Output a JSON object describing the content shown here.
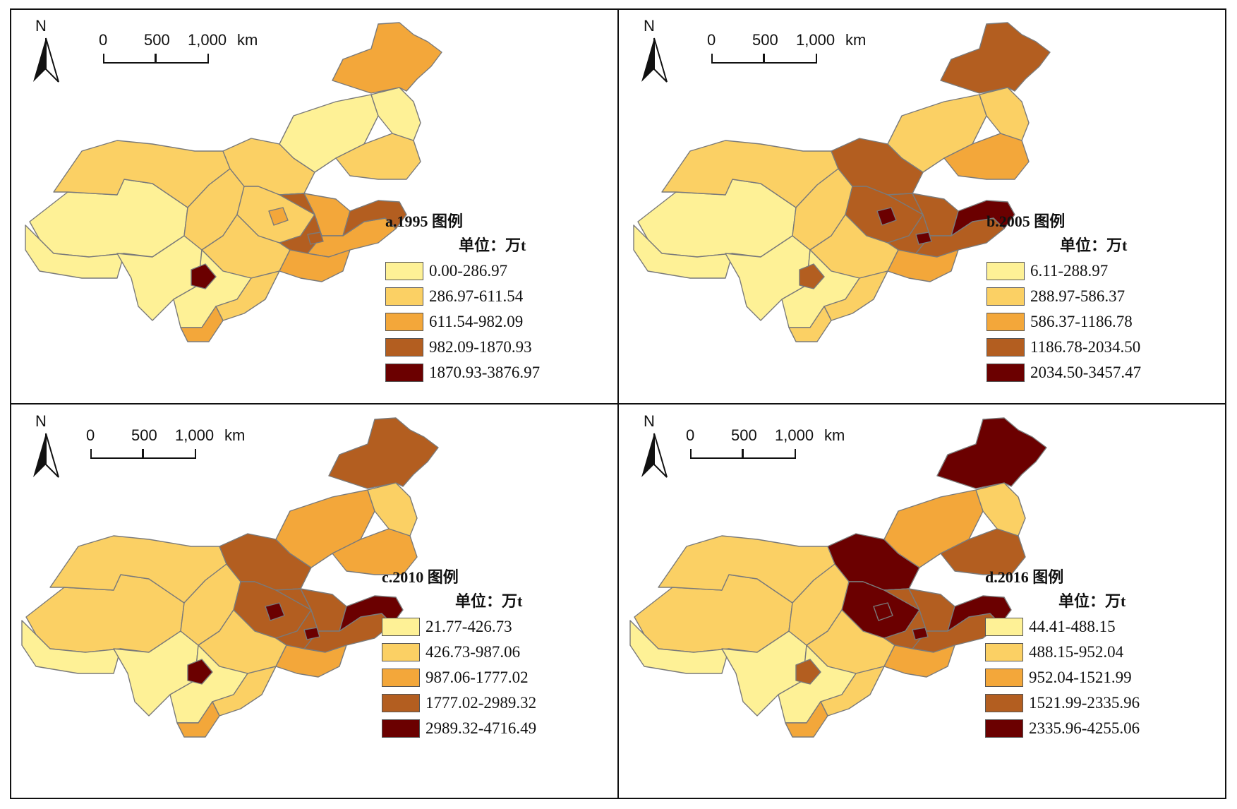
{
  "north_label": "N",
  "scale_ticks": [
    "0",
    "500",
    "1,000"
  ],
  "scale_unit": "km",
  "unit_label": "单位：万t",
  "class_colors": [
    "#FEF196",
    "#FBD064",
    "#F3A73A",
    "#B35E20",
    "#6B0000"
  ],
  "panels": [
    {
      "title": "a.1995 图例",
      "legend": [
        "0.00-286.97",
        "286.97-611.54",
        "611.54-982.09",
        "982.09-1870.93",
        "1870.93-3876.97"
      ],
      "region_classes": {
        "northeast": 2,
        "ne_south": 0,
        "ne_lower": 1,
        "inner_east": 0,
        "inner_mid": 1,
        "north_core": 1,
        "shanxi": 3,
        "hebei": 2,
        "shandong": 2,
        "coast": 3,
        "west_big": 1,
        "xinjiang": 0,
        "tibet": 0,
        "qinghai": 0,
        "gansu": 1,
        "shaanxi": 1,
        "henan": 2,
        "sichuan": 0,
        "chongqing": 4,
        "guizhou": 1,
        "yunnan": 2,
        "beijing_spot": 2,
        "central_spot": 3
      }
    },
    {
      "title": "b.2005 图例",
      "legend": [
        "6.11-288.97",
        "288.97-586.37",
        "586.37-1186.78",
        "1186.78-2034.50",
        "2034.50-3457.47"
      ],
      "region_classes": {
        "northeast": 3,
        "ne_south": 1,
        "ne_lower": 2,
        "inner_east": 1,
        "inner_mid": 3,
        "north_core": 3,
        "shanxi": 3,
        "hebei": 3,
        "shandong": 3,
        "coast": 4,
        "west_big": 1,
        "xinjiang": 0,
        "tibet": 0,
        "qinghai": 0,
        "gansu": 1,
        "shaanxi": 1,
        "henan": 2,
        "sichuan": 0,
        "chongqing": 3,
        "guizhou": 1,
        "yunnan": 1,
        "beijing_spot": 4,
        "central_spot": 4
      }
    },
    {
      "title": "c.2010 图例",
      "legend": [
        "21.77-426.73",
        "426.73-987.06",
        "987.06-1777.02",
        "1777.02-2989.32",
        "2989.32-4716.49"
      ],
      "region_classes": {
        "northeast": 3,
        "ne_south": 1,
        "ne_lower": 2,
        "inner_east": 2,
        "inner_mid": 3,
        "north_core": 3,
        "shanxi": 3,
        "hebei": 3,
        "shandong": 3,
        "coast": 4,
        "west_big": 1,
        "xinjiang": 1,
        "tibet": 0,
        "qinghai": 0,
        "gansu": 1,
        "shaanxi": 1,
        "henan": 2,
        "sichuan": 0,
        "chongqing": 4,
        "guizhou": 1,
        "yunnan": 2,
        "beijing_spot": 4,
        "central_spot": 4
      }
    },
    {
      "title": "d.2016 图例",
      "legend": [
        "44.41-488.15",
        "488.15-952.04",
        "952.04-1521.99",
        "1521.99-2335.96",
        "2335.96-4255.06"
      ],
      "region_classes": {
        "northeast": 4,
        "ne_south": 1,
        "ne_lower": 3,
        "inner_east": 2,
        "inner_mid": 4,
        "north_core": 4,
        "shanxi": 3,
        "hebei": 3,
        "shandong": 3,
        "coast": 4,
        "west_big": 1,
        "xinjiang": 1,
        "tibet": 0,
        "qinghai": 0,
        "gansu": 1,
        "shaanxi": 1,
        "henan": 2,
        "sichuan": 0,
        "chongqing": 3,
        "guizhou": 1,
        "yunnan": 2,
        "beijing_spot": 4,
        "central_spot": 4
      }
    }
  ]
}
